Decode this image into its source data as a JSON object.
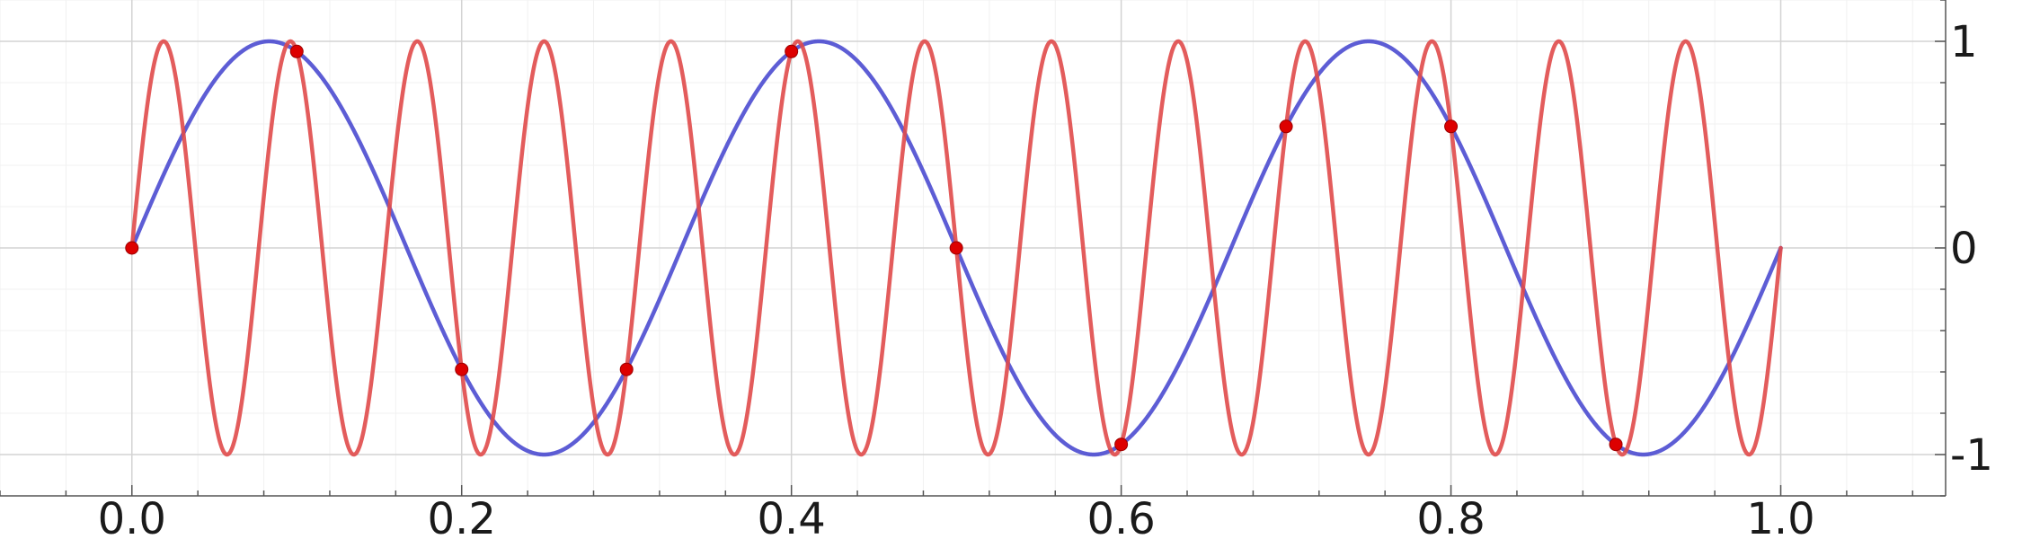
{
  "chart_data": {
    "type": "line",
    "title": "",
    "xlabel": "",
    "ylabel": "",
    "xlim": [
      -0.08,
      1.1
    ],
    "ylim": [
      -1.2,
      1.2
    ],
    "grid": true,
    "legend": "none",
    "y_axis_side": "right",
    "x_ticks": [
      0.0,
      0.2,
      0.4,
      0.6,
      0.8,
      1.0
    ],
    "x_tick_labels": [
      "0.0",
      "0.2",
      "0.4",
      "0.6",
      "0.8",
      "1.0"
    ],
    "y_ticks": [
      -1,
      0,
      1
    ],
    "y_tick_labels": [
      "-1",
      "0",
      "1"
    ],
    "series": [
      {
        "color": "#4b4bd0",
        "function": "sin(6*pi*x)",
        "x_range": [
          0,
          1
        ]
      },
      {
        "color": "#e04a4a",
        "function": "sin(26*pi*x)",
        "x_range": [
          0,
          1
        ]
      }
    ],
    "sample_points": {
      "color": "#dd0000",
      "x": [
        0.0,
        0.1,
        0.2,
        0.3,
        0.4,
        0.5,
        0.6,
        0.7,
        0.8,
        0.9
      ],
      "y": [
        0.0,
        0.951,
        -0.588,
        -0.588,
        0.951,
        0.0,
        -0.951,
        0.588,
        0.588,
        -0.951
      ]
    }
  }
}
